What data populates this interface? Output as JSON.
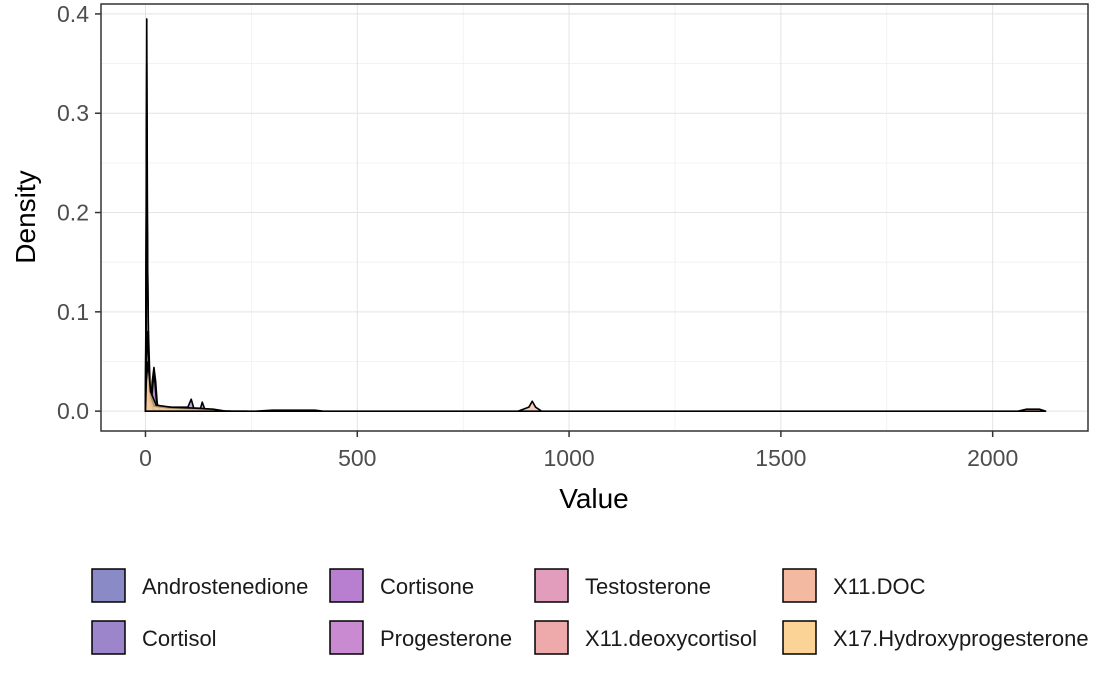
{
  "chart_data": {
    "type": "area",
    "subtype": "density",
    "title": "",
    "xlabel": "Value",
    "ylabel": "Density",
    "xlim": [
      -105,
      2225
    ],
    "ylim": [
      -0.02,
      0.41
    ],
    "x_ticks": [
      0,
      500,
      1000,
      1500,
      2000
    ],
    "y_ticks": [
      0.0,
      0.1,
      0.2,
      0.3,
      0.4
    ],
    "x_tick_labels": [
      "0",
      "500",
      "1000",
      "1500",
      "2000"
    ],
    "y_tick_labels": [
      "0.0",
      "0.1",
      "0.2",
      "0.3",
      "0.4"
    ],
    "grid": true,
    "legend_position": "bottom",
    "series": [
      {
        "name": "Androstenedione",
        "color": "#8a8ac6",
        "points": [
          [
            0,
            0
          ],
          [
            1,
            0.08
          ],
          [
            3,
            0.27
          ],
          [
            5,
            0.12
          ],
          [
            8,
            0.02
          ],
          [
            12,
            0.006
          ],
          [
            16,
            0.03
          ],
          [
            20,
            0.044
          ],
          [
            24,
            0.03
          ],
          [
            28,
            0.006
          ],
          [
            35,
            0
          ],
          [
            60,
            0
          ]
        ]
      },
      {
        "name": "Cortisol",
        "color": "#9d85cc",
        "points": [
          [
            0,
            0
          ],
          [
            2,
            0.04
          ],
          [
            5,
            0.06
          ],
          [
            9,
            0.02
          ],
          [
            14,
            0.005
          ],
          [
            60,
            0.004
          ],
          [
            100,
            0.004
          ],
          [
            108,
            0.012
          ],
          [
            114,
            0.003
          ],
          [
            130,
            0.003
          ],
          [
            134,
            0.009
          ],
          [
            140,
            0.002
          ],
          [
            150,
            0
          ],
          [
            180,
            0
          ]
        ]
      },
      {
        "name": "Cortisone",
        "color": "#b87fd1",
        "points": [
          [
            0,
            0
          ],
          [
            1,
            0.1
          ],
          [
            3,
            0.395
          ],
          [
            5,
            0.15
          ],
          [
            8,
            0.02
          ],
          [
            14,
            0.01
          ],
          [
            20,
            0.04
          ],
          [
            26,
            0.01
          ],
          [
            34,
            0
          ],
          [
            60,
            0
          ]
        ]
      },
      {
        "name": "Progesterone",
        "color": "#c98ad1",
        "points": [
          [
            0,
            0
          ],
          [
            1,
            0.08
          ],
          [
            3,
            0.35
          ],
          [
            5,
            0.1
          ],
          [
            9,
            0.005
          ],
          [
            15,
            0
          ],
          [
            200,
            0
          ]
        ]
      },
      {
        "name": "Testosterone",
        "color": "#e29dbd",
        "points": [
          [
            0,
            0
          ],
          [
            1,
            0.1
          ],
          [
            3,
            0.3
          ],
          [
            5,
            0.12
          ],
          [
            9,
            0.01
          ],
          [
            15,
            0.002
          ],
          [
            30,
            0
          ],
          [
            200,
            0
          ]
        ]
      },
      {
        "name": "X11.deoxycortisol",
        "color": "#eeaaaa",
        "points": [
          [
            0,
            0
          ],
          [
            2,
            0.1
          ],
          [
            4,
            0.19
          ],
          [
            7,
            0.08
          ],
          [
            12,
            0.01
          ],
          [
            20,
            0
          ],
          [
            60,
            0
          ]
        ]
      },
      {
        "name": "X11.DOC",
        "color": "#f4b9a1",
        "points": [
          [
            0,
            0
          ],
          [
            2,
            0.05
          ],
          [
            5,
            0.08
          ],
          [
            10,
            0.02
          ],
          [
            20,
            0.005
          ],
          [
            60,
            0.003
          ],
          [
            150,
            0.002
          ],
          [
            180,
            0
          ],
          [
            260,
            0
          ],
          [
            300,
            0.001
          ],
          [
            400,
            0.001
          ],
          [
            420,
            0
          ],
          [
            880,
            0
          ],
          [
            905,
            0.004
          ],
          [
            913,
            0.01
          ],
          [
            921,
            0.004
          ],
          [
            935,
            0
          ],
          [
            1000,
            0
          ],
          [
            2060,
            0
          ],
          [
            2080,
            0.002
          ],
          [
            2110,
            0.002
          ],
          [
            2125,
            0
          ]
        ]
      },
      {
        "name": "X17.Hydroxyprogesterone",
        "color": "#fbd397",
        "points": [
          [
            0,
            0
          ],
          [
            2,
            0.03
          ],
          [
            6,
            0.05
          ],
          [
            12,
            0.02
          ],
          [
            25,
            0.006
          ],
          [
            60,
            0.004
          ],
          [
            120,
            0.003
          ],
          [
            160,
            0.002
          ],
          [
            190,
            0
          ],
          [
            240,
            0
          ]
        ]
      }
    ]
  },
  "legend": {
    "items": [
      {
        "label": "Androstenedione",
        "color": "#8a8ac6"
      },
      {
        "label": "Cortisol",
        "color": "#9d85cc"
      },
      {
        "label": "Cortisone",
        "color": "#b87fd1"
      },
      {
        "label": "Progesterone",
        "color": "#c98ad1"
      },
      {
        "label": "Testosterone",
        "color": "#e29dbd"
      },
      {
        "label": "X11.deoxycortisol",
        "color": "#eeaaaa"
      },
      {
        "label": "X11.DOC",
        "color": "#f4b9a1"
      },
      {
        "label": "X17.Hydroxyprogesterone",
        "color": "#fbd397"
      }
    ]
  }
}
